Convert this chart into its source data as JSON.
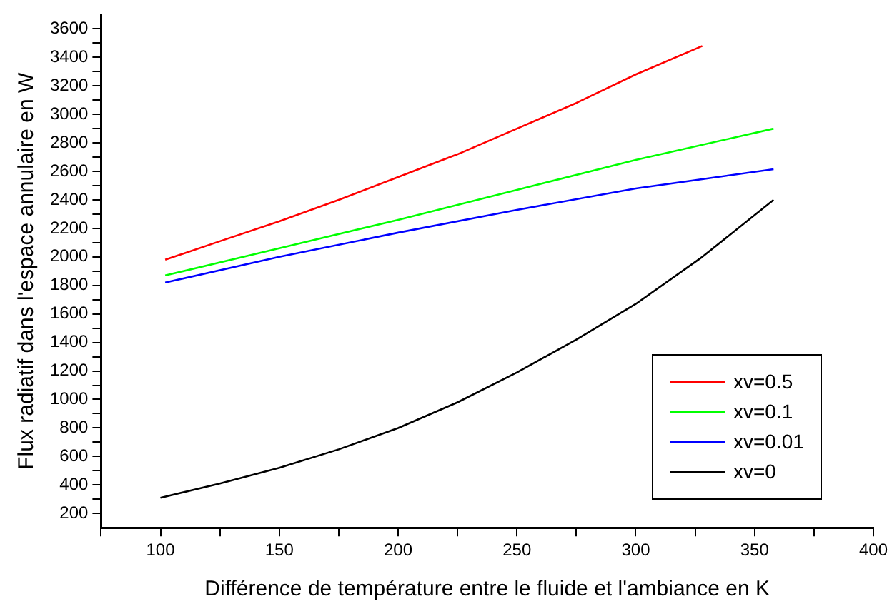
{
  "chart_data": {
    "type": "line",
    "xlabel": "Différence de température entre le fluide et l'ambiance en K",
    "ylabel": "Flux radiatif dans l'espace annulaire en W",
    "xlim": [
      75,
      400
    ],
    "ylim": [
      100,
      3700
    ],
    "xticks": [
      {
        "value": 75,
        "label": null
      },
      100,
      {
        "value": 125,
        "label": null
      },
      150,
      {
        "value": 175,
        "label": null
      },
      200,
      {
        "value": 225,
        "label": null
      },
      250,
      {
        "value": 275,
        "label": null
      },
      300,
      {
        "value": 325,
        "label": null
      },
      350,
      {
        "value": 375,
        "label": null
      },
      400
    ],
    "yticks": [
      200,
      {
        "value": 300,
        "label": null
      },
      400,
      {
        "value": 500,
        "label": null
      },
      600,
      {
        "value": 700,
        "label": null
      },
      800,
      {
        "value": 900,
        "label": null
      },
      1000,
      {
        "value": 1100,
        "label": null
      },
      1200,
      {
        "value": 1300,
        "label": null
      },
      1400,
      {
        "value": 1500,
        "label": null
      },
      1600,
      {
        "value": 1700,
        "label": null
      },
      1800,
      {
        "value": 1900,
        "label": null
      },
      2000,
      {
        "value": 2100,
        "label": null
      },
      2200,
      {
        "value": 2300,
        "label": null
      },
      2400,
      {
        "value": 2500,
        "label": null
      },
      2600,
      {
        "value": 2700,
        "label": null
      },
      2800,
      {
        "value": 2900,
        "label": null
      },
      3000,
      {
        "value": 3100,
        "label": null
      },
      3200,
      {
        "value": 3300,
        "label": null
      },
      3400,
      {
        "value": 3500,
        "label": null
      },
      3600
    ],
    "grid": false,
    "legend": "bottom right",
    "marker": "none",
    "line_style": "solid",
    "series": [
      {
        "name": "xv=0.5",
        "color": "#ff0000",
        "x": [
          102,
          125,
          150,
          175,
          200,
          225,
          250,
          275,
          300,
          328
        ],
        "values": [
          1980,
          2110,
          2250,
          2400,
          2560,
          2720,
          2900,
          3080,
          3280,
          3480
        ]
      },
      {
        "name": "xv=0.1",
        "color": "#00ff00",
        "x": [
          102,
          150,
          200,
          250,
          300,
          358
        ],
        "values": [
          1870,
          2060,
          2260,
          2470,
          2680,
          2900
        ]
      },
      {
        "name": "xv=0.01",
        "color": "#0000ff",
        "x": [
          102,
          150,
          200,
          250,
          300,
          358
        ],
        "values": [
          1820,
          2000,
          2170,
          2330,
          2480,
          2615
        ]
      },
      {
        "name": "xv=0",
        "color": "#000000",
        "x": [
          100,
          125,
          150,
          175,
          200,
          225,
          250,
          275,
          300,
          328,
          358
        ],
        "values": [
          310,
          410,
          520,
          650,
          800,
          980,
          1190,
          1420,
          1670,
          2000,
          2400
        ]
      }
    ]
  }
}
